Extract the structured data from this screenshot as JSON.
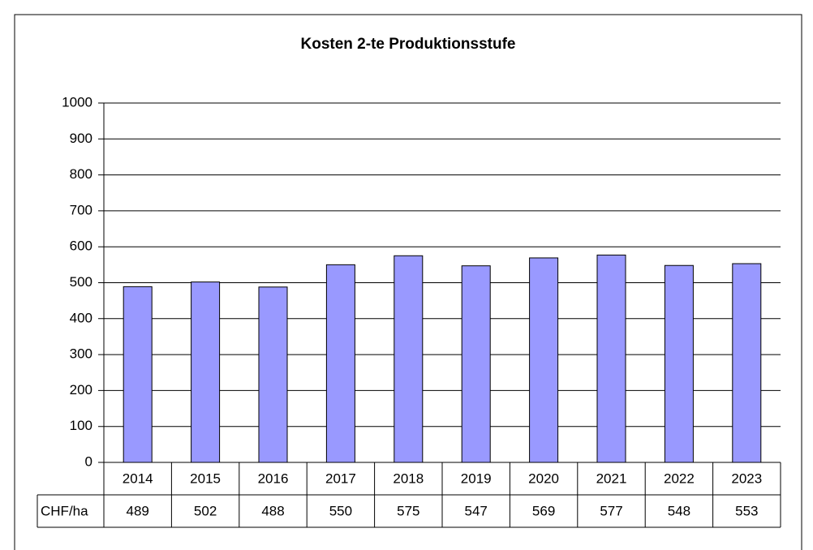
{
  "chart_data": {
    "type": "bar",
    "title": "Kosten 2-te Produktionsstufe",
    "categories": [
      "2014",
      "2015",
      "2016",
      "2017",
      "2018",
      "2019",
      "2020",
      "2021",
      "2022",
      "2023"
    ],
    "series": [
      {
        "name": "CHF/ha",
        "color": "#9999ff",
        "values": [
          489,
          502,
          488,
          550,
          575,
          547,
          569,
          577,
          548,
          553
        ]
      }
    ],
    "ylim": [
      0,
      1000
    ],
    "yticks": [
      0,
      100,
      200,
      300,
      400,
      500,
      600,
      700,
      800,
      900,
      1000
    ],
    "grid": true
  }
}
